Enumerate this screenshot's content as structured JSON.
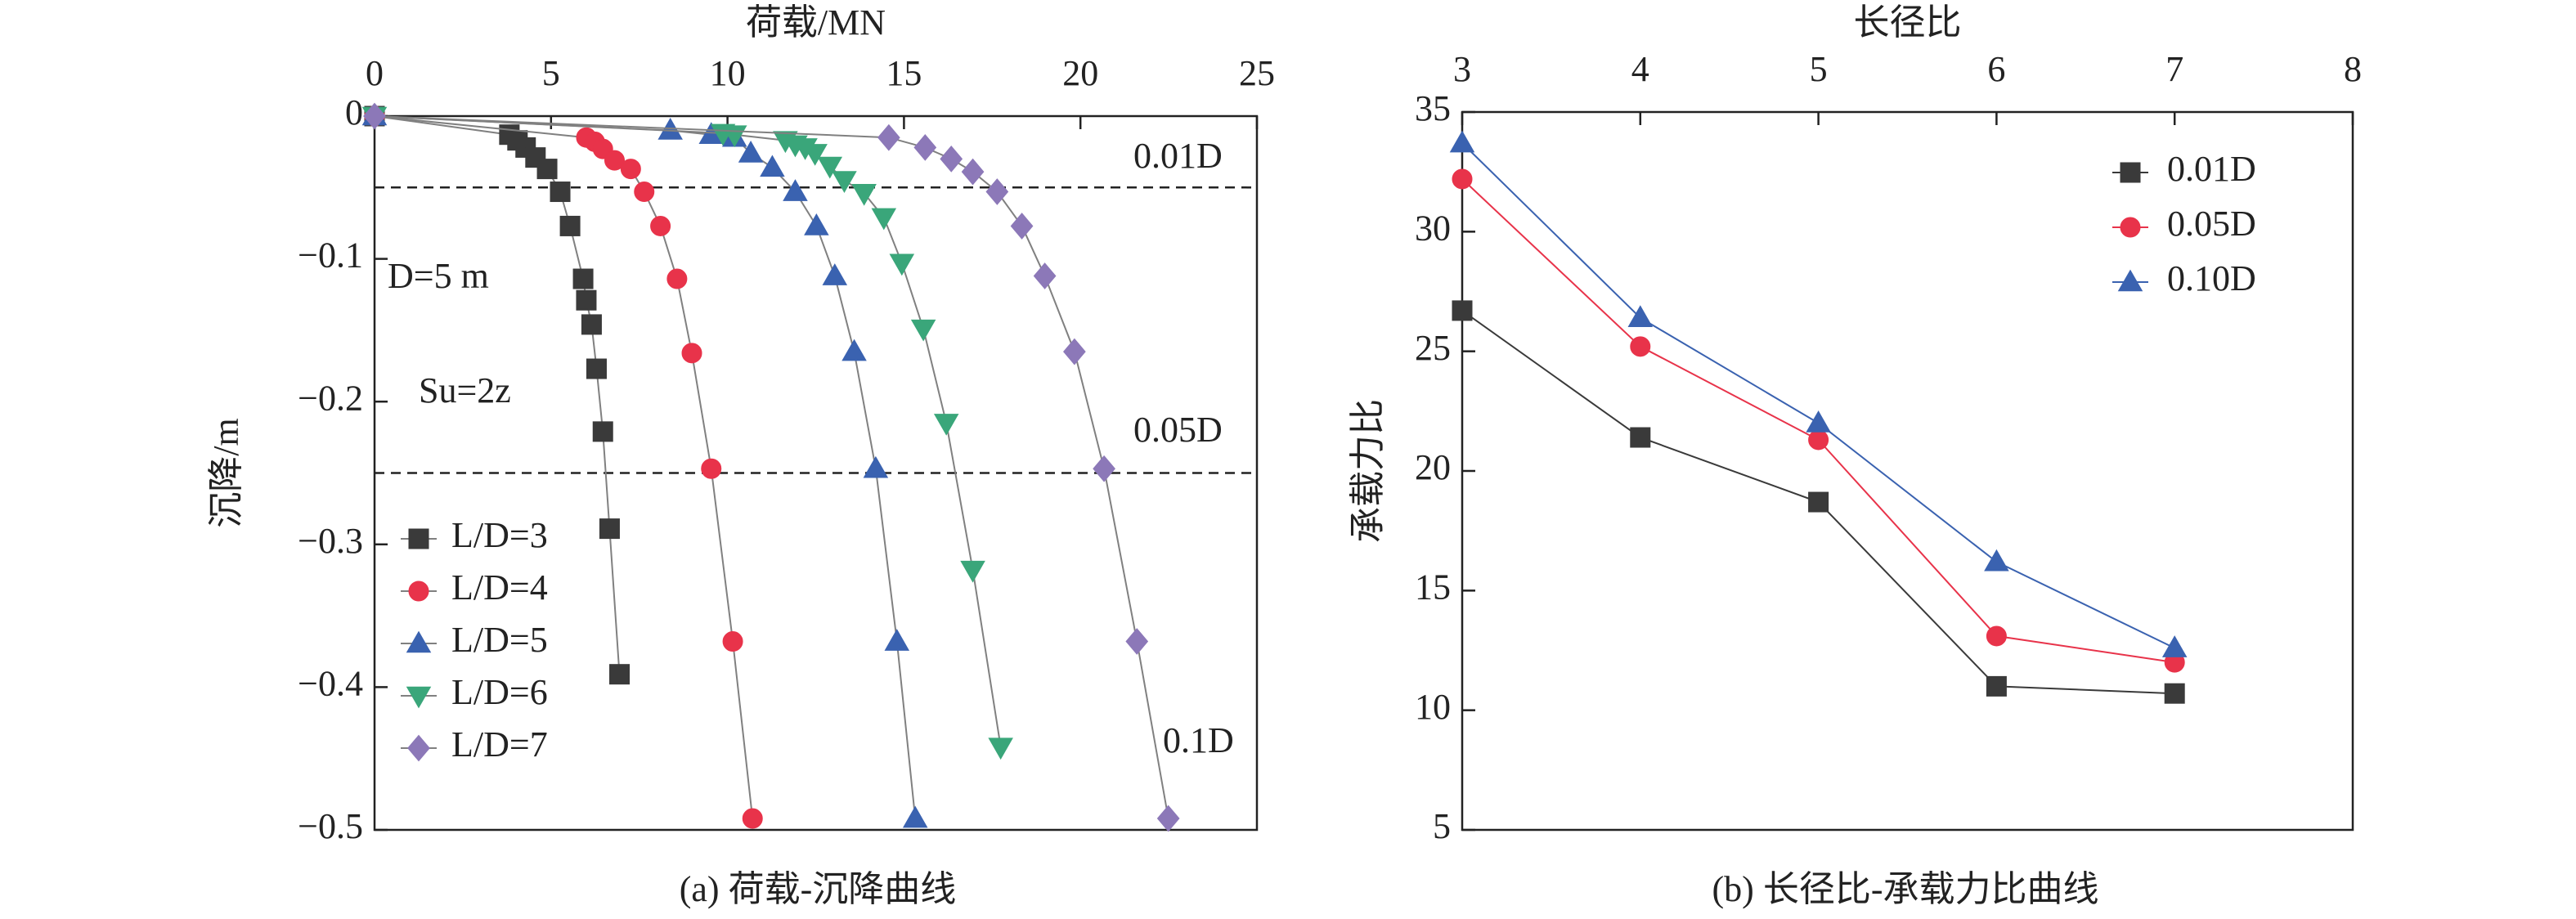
{
  "chart_data": [
    {
      "type": "line",
      "x_label": "荷载/MN",
      "y_label": "沉降/m",
      "caption": "(a) 荷载-沉降曲线",
      "xlim": [
        0,
        25
      ],
      "xticks": [
        0,
        5,
        10,
        15,
        20,
        25
      ],
      "ylim": [
        -0.5,
        0
      ],
      "yticks": [
        0,
        {
          "value": -0.1,
          "label": "−0.1"
        },
        {
          "value": -0.2,
          "label": "−0.2"
        },
        {
          "value": -0.3,
          "label": "−0.3"
        },
        {
          "value": -0.4,
          "label": "−0.4"
        },
        {
          "value": -0.5,
          "label": "−0.5"
        }
      ],
      "grid": false,
      "legend": "lower left",
      "line_color": "#808080",
      "reference_lines": [
        -0.05,
        -0.25
      ],
      "annotations": [
        "0.01D",
        "0.05D",
        "0.1D",
        "D=5 m",
        "Su=2z"
      ],
      "series": [
        {
          "name": "L/D=3",
          "color": "#3a3a3a",
          "marker": "square",
          "x": [
            0,
            3.82,
            4.05,
            4.28,
            4.56,
            4.89,
            5.26,
            5.54,
            5.91,
            6.0,
            6.15,
            6.29,
            6.47,
            6.66,
            6.94
          ],
          "values": [
            0,
            -0.013,
            -0.017,
            -0.022,
            -0.029,
            -0.037,
            -0.053,
            -0.077,
            -0.114,
            -0.129,
            -0.146,
            -0.177,
            -0.221,
            -0.289,
            -0.391
          ]
        },
        {
          "name": "L/D=4",
          "color": "#e8334a",
          "marker": "circle",
          "x": [
            0,
            6.0,
            6.24,
            6.47,
            6.8,
            7.26,
            7.64,
            8.1,
            8.57,
            8.99,
            9.54,
            10.15,
            10.71
          ],
          "values": [
            0,
            -0.015,
            -0.018,
            -0.023,
            -0.031,
            -0.037,
            -0.053,
            -0.077,
            -0.114,
            -0.166,
            -0.247,
            -0.368,
            -0.492
          ]
        },
        {
          "name": "L/D=5",
          "color": "#3a62b0",
          "marker": "triangle",
          "x": [
            0,
            8.38,
            9.54,
            10.2,
            10.66,
            11.27,
            11.92,
            12.52,
            13.04,
            13.59,
            14.2,
            14.8,
            15.32
          ],
          "values": [
            0,
            -0.01,
            -0.013,
            -0.015,
            -0.026,
            -0.036,
            -0.053,
            -0.077,
            -0.112,
            -0.165,
            -0.247,
            -0.368,
            -0.492
          ]
        },
        {
          "name": "L/D=6",
          "color": "#3aa67a",
          "marker": "triangle-down",
          "x": [
            0,
            9.87,
            10.2,
            11.64,
            11.92,
            12.2,
            12.48,
            12.9,
            13.31,
            13.87,
            14.43,
            14.94,
            15.55,
            16.2,
            16.95,
            17.74
          ],
          "values": [
            0,
            -0.012,
            -0.013,
            -0.017,
            -0.02,
            -0.022,
            -0.026,
            -0.035,
            -0.045,
            -0.054,
            -0.071,
            -0.103,
            -0.149,
            -0.215,
            -0.318,
            -0.442
          ]
        },
        {
          "name": "L/D=7",
          "color": "#8c78b8",
          "marker": "diamond",
          "x": [
            0,
            14.57,
            15.6,
            16.34,
            16.95,
            17.64,
            18.34,
            18.99,
            19.83,
            20.67,
            21.6,
            22.49
          ],
          "values": [
            0,
            -0.015,
            -0.022,
            -0.03,
            -0.039,
            -0.053,
            -0.077,
            -0.112,
            -0.165,
            -0.247,
            -0.368,
            -0.492
          ]
        }
      ]
    },
    {
      "type": "line",
      "x_label": "长径比",
      "y_label": "承载力比",
      "caption": "(b) 长径比-承载力比曲线",
      "xlim": [
        3,
        8
      ],
      "xticks": [
        3,
        4,
        5,
        6,
        7,
        8
      ],
      "ylim": [
        5,
        35
      ],
      "yticks": [
        5,
        10,
        15,
        20,
        25,
        30,
        35
      ],
      "grid": false,
      "legend": "upper right",
      "series": [
        {
          "name": "0.01D",
          "color": "#3a3a3a",
          "marker": "square",
          "x": [
            3,
            4,
            5,
            6,
            7
          ],
          "values": [
            26.7,
            21.4,
            18.7,
            11.0,
            10.7
          ]
        },
        {
          "name": "0.05D",
          "color": "#e8334a",
          "marker": "circle",
          "x": [
            3,
            4,
            5,
            6,
            7
          ],
          "values": [
            32.2,
            25.2,
            21.3,
            13.1,
            12.0
          ]
        },
        {
          "name": "0.10D",
          "color": "#3a62b0",
          "marker": "triangle",
          "x": [
            3,
            4,
            5,
            6,
            7
          ],
          "values": [
            33.7,
            26.4,
            22.0,
            16.2,
            12.6
          ]
        }
      ]
    }
  ]
}
